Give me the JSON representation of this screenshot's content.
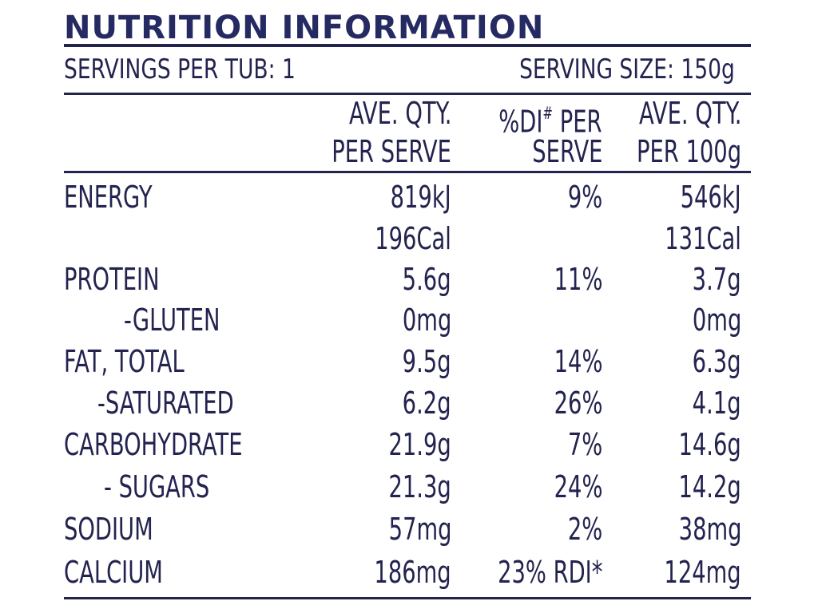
{
  "title": "NUTRITION INFORMATION",
  "servings_per_tub": "SERVINGS PER TUB: 1",
  "serving_size": "SERVING SIZE: 150g",
  "headers": {
    "col1_line1": "AVE. QTY.",
    "col1_line2": "PER SERVE",
    "col2_line1_prefix": "%DI",
    "col2_line1_mark": "#",
    "col2_line1_suffix": " PER",
    "col2_line2": "SERVE",
    "col3_line1": "AVE. QTY.",
    "col3_line2": "PER 100g"
  },
  "rows": [
    {
      "label": "ENERGY",
      "per_serve": "819kJ",
      "di": "9%",
      "per_100g": "546kJ"
    },
    {
      "label": "",
      "per_serve": "196Cal",
      "di": "",
      "per_100g": "131Cal"
    },
    {
      "label": "PROTEIN",
      "per_serve": "5.6g",
      "di": "11%",
      "per_100g": "3.7g"
    },
    {
      "label": "-GLUTEN",
      "per_serve": "0mg",
      "di": "",
      "per_100g": "0mg"
    },
    {
      "label": "FAT, TOTAL",
      "per_serve": "9.5g",
      "di": "14%",
      "per_100g": "6.3g"
    },
    {
      "label": "-SATURATED",
      "per_serve": "6.2g",
      "di": "26%",
      "per_100g": "4.1g"
    },
    {
      "label": "CARBOHYDRATE",
      "per_serve": "21.9g",
      "di": "7%",
      "per_100g": "14.6g"
    },
    {
      "label": "- SUGARS",
      "per_serve": "21.3g",
      "di": "24%",
      "per_100g": "14.2g"
    },
    {
      "label": "SODIUM",
      "per_serve": "57mg",
      "di": "2%",
      "per_100g": "38mg"
    },
    {
      "label": "CALCIUM",
      "per_serve": "186mg",
      "di": "23% RDI*",
      "per_100g": "124mg"
    }
  ]
}
